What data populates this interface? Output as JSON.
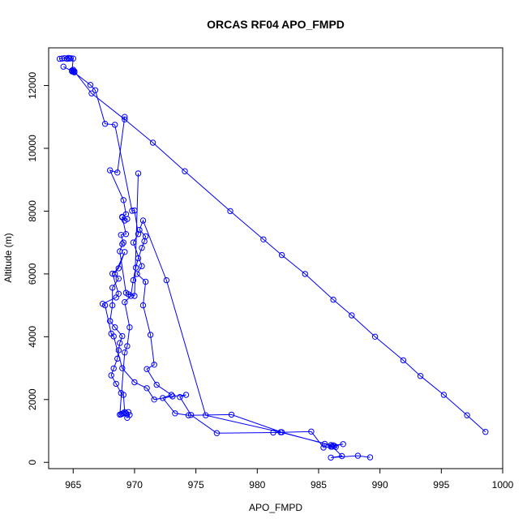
{
  "chart_data": {
    "type": "line",
    "title": "ORCAS RF04 APO_FMPD",
    "xlabel": "APO_FMPD",
    "ylabel": "Altitude (m)",
    "xlim": [
      963,
      1000
    ],
    "ylim": [
      -200,
      13200
    ],
    "xticks": [
      965,
      970,
      975,
      980,
      985,
      990,
      995,
      1000
    ],
    "yticks": [
      0,
      2000,
      4000,
      6000,
      8000,
      10000,
      12000
    ],
    "grid": false,
    "legend": "none",
    "marker": "open-circle",
    "line_color": "#0000ff",
    "x": [
      998.6,
      997.1,
      995.2,
      993.3,
      991.9,
      989.6,
      987.7,
      986.2,
      983.9,
      982.0,
      980.5,
      977.8,
      974.1,
      971.5,
      969.2,
      966.5,
      965.1,
      964.9,
      965.0,
      966.4,
      966.8,
      967.6,
      968.4,
      969.8,
      970.0,
      970.3,
      969.9,
      970.6,
      970.2,
      970.9,
      970.7,
      971.3,
      971.6,
      971.0,
      971.8,
      973.0,
      972.3,
      973.3,
      974.4,
      977.9,
      982.0,
      985.5,
      986.1,
      986.3,
      987.0,
      986.2,
      986.4,
      986.0,
      985.4,
      984.4,
      981.3,
      976.7,
      974.6,
      973.7,
      974.2,
      973.1,
      971.6,
      971.0,
      970.0,
      969.0,
      968.3,
      968.1,
      967.6,
      967.4,
      968.5,
      968.7,
      968.2,
      968.7,
      969.2,
      968.4,
      968.7,
      968.2,
      968.2,
      968.0,
      968.4,
      969.0,
      968.8,
      968.7,
      968.6,
      968.3,
      968.1,
      968.5,
      968.9,
      969.1,
      969.2,
      969.3,
      969.5,
      969.6,
      969.4,
      969.1,
      969.0,
      968.9,
      968.8,
      969.2,
      969.4,
      969.6,
      969.2,
      969.7,
      969.9,
      970.1,
      970.3,
      970.6,
      970.8,
      970.9,
      970.4,
      970.7,
      972.6,
      975.8,
      981.9,
      986.0,
      986.9,
      986.0,
      988.2,
      989.2
    ],
    "y": [
      970,
      1500,
      2150,
      2750,
      3250,
      4000,
      4680,
      5180,
      6000,
      6600,
      7100,
      8000,
      9270,
      10180,
      10920,
      11750,
      12450,
      12480,
      12440,
      12020,
      11850,
      10780,
      10750,
      8010,
      8020,
      7270,
      7000,
      6250,
      6000,
      5750,
      5000,
      4060,
      3110,
      2970,
      2470,
      2150,
      2050,
      1560,
      1500,
      1520,
      960,
      590,
      500,
      520,
      580,
      540,
      490,
      500,
      470,
      980,
      950,
      930,
      1510,
      2080,
      2150,
      2100,
      2000,
      2360,
      2550,
      3000,
      4010,
      4100,
      5000,
      5050,
      5250,
      5370,
      6010,
      6180,
      6700,
      6000,
      5850,
      5560,
      5000,
      4500,
      4300,
      4020,
      3800,
      3570,
      3300,
      2990,
      2770,
      2500,
      2210,
      2150,
      1600,
      1560,
      1600,
      1510,
      1420,
      1560,
      1550,
      1530,
      1520,
      3500,
      3700,
      4300,
      5100,
      5300,
      5800,
      6200,
      6500,
      6830,
      7040,
      7200,
      7400,
      7700,
      5800,
      1500,
      960,
      550,
      200,
      150,
      210,
      160
    ],
    "top_cluster": {
      "x": [
        963.9,
        964.1,
        964.3,
        964.5,
        964.6,
        964.7,
        964.8,
        965.0,
        964.9,
        965.0,
        965.1,
        964.2
      ],
      "y": [
        12850,
        12860,
        12870,
        12850,
        12880,
        12860,
        12870,
        12860,
        12450,
        12500,
        12420,
        12600
      ]
    },
    "return_leg": {
      "x": [
        969.2,
        968.6,
        968.0,
        969.1,
        969.3,
        969.0,
        969.4,
        969.2,
        969.0,
        969.3,
        968.9,
        969.1,
        969.0,
        968.8,
        969.3,
        969.5,
        970.0,
        970.3
      ],
      "y": [
        11000,
        9230,
        9300,
        8350,
        7900,
        7800,
        7750,
        7700,
        7820,
        7270,
        7240,
        7000,
        6950,
        6720,
        5400,
        5350,
        5300,
        9200
      ]
    }
  }
}
